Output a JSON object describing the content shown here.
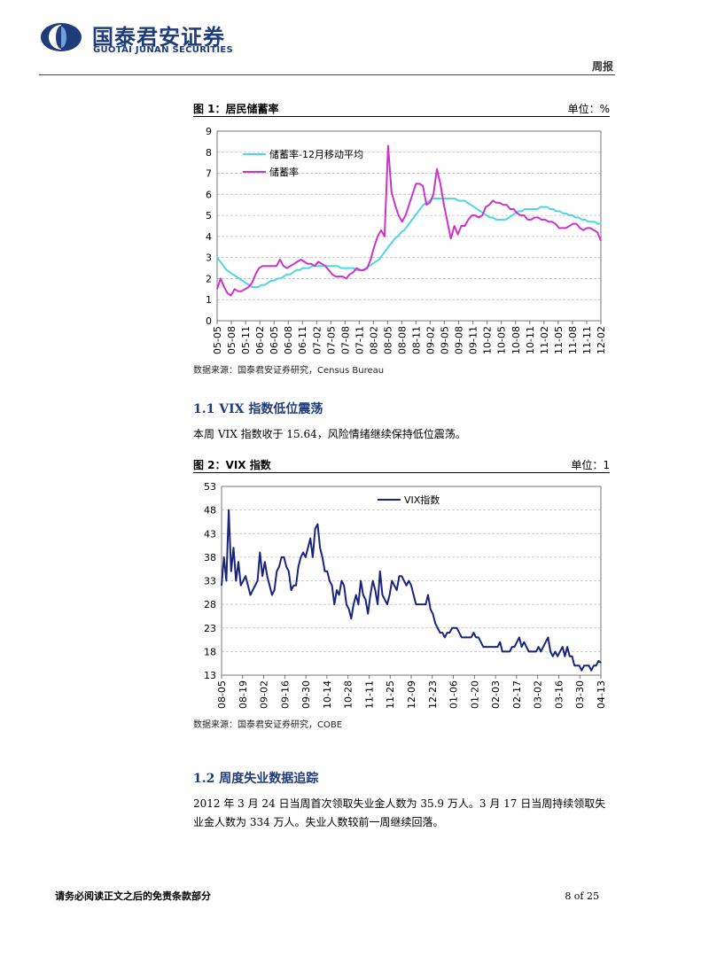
{
  "header": {
    "brand_cn": "国泰君安证券",
    "brand_en": "GUOTAI JUNAN SECURITIES",
    "report_type": "周报",
    "brand_color": "#1f3b7a"
  },
  "figure1": {
    "title": "图 1：居民储蓄率",
    "unit": "单位：%",
    "source": "数据来源：国泰君安证券研究，Census Bureau",
    "chart_data": {
      "type": "line",
      "ylim": [
        0,
        9
      ],
      "yticks": [
        0,
        1,
        2,
        3,
        4,
        5,
        6,
        7,
        8,
        9
      ],
      "xticks": [
        "05-05",
        "05-08",
        "05-11",
        "06-02",
        "06-05",
        "06-08",
        "06-11",
        "07-02",
        "07-05",
        "07-08",
        "07-11",
        "08-02",
        "08-05",
        "08-08",
        "08-11",
        "09-02",
        "09-05",
        "09-08",
        "09-11",
        "10-02",
        "10-05",
        "10-08",
        "10-11",
        "11-02",
        "11-05",
        "11-08",
        "11-11",
        "12-02"
      ],
      "legend_position": "top-left",
      "grid": "horizontal",
      "series": [
        {
          "name": "储蓄率-12月移动平均",
          "color": "#4fd6e0",
          "values": [
            3.0,
            2.8,
            2.6,
            2.4,
            2.3,
            2.2,
            2.1,
            2.0,
            1.9,
            1.8,
            1.7,
            1.6,
            1.6,
            1.6,
            1.7,
            1.7,
            1.8,
            1.9,
            1.9,
            2.0,
            2.0,
            2.1,
            2.2,
            2.2,
            2.3,
            2.4,
            2.4,
            2.5,
            2.5,
            2.5,
            2.6,
            2.6,
            2.6,
            2.6,
            2.6,
            2.6,
            2.6,
            2.6,
            2.6,
            2.5,
            2.5,
            2.5,
            2.5,
            2.5,
            2.4,
            2.4,
            2.4,
            2.5,
            2.6,
            2.7,
            2.8,
            2.9,
            3.1,
            3.3,
            3.5,
            3.7,
            3.9,
            4.0,
            4.2,
            4.3,
            4.5,
            4.7,
            4.9,
            5.1,
            5.3,
            5.5,
            5.6,
            5.7,
            5.8,
            5.8,
            5.8,
            5.8,
            5.8,
            5.8,
            5.8,
            5.8,
            5.7,
            5.7,
            5.7,
            5.6,
            5.5,
            5.4,
            5.3,
            5.2,
            5.1,
            5.0,
            4.9,
            4.9,
            4.8,
            4.8,
            4.8,
            4.8,
            4.9,
            5.0,
            5.1,
            5.2,
            5.2,
            5.3,
            5.3,
            5.3,
            5.3,
            5.3,
            5.4,
            5.4,
            5.4,
            5.3,
            5.3,
            5.2,
            5.2,
            5.1,
            5.1,
            5.0,
            5.0,
            4.9,
            4.9,
            4.8,
            4.8,
            4.7,
            4.7,
            4.7,
            4.6,
            4.6
          ]
        },
        {
          "name": "储蓄率",
          "color": "#cc33cc",
          "values": [
            1.5,
            2.0,
            1.6,
            1.3,
            1.2,
            1.5,
            1.4,
            1.4,
            1.5,
            1.6,
            1.8,
            2.2,
            2.5,
            2.6,
            2.6,
            2.6,
            2.6,
            2.6,
            2.9,
            2.6,
            2.5,
            2.6,
            2.7,
            2.8,
            2.9,
            2.8,
            2.7,
            2.7,
            2.6,
            2.8,
            2.7,
            2.6,
            2.4,
            2.2,
            2.1,
            2.1,
            2.1,
            2.0,
            2.2,
            2.3,
            2.5,
            2.4,
            2.4,
            2.5,
            2.9,
            3.5,
            4.0,
            4.3,
            4.0,
            8.3,
            6.1,
            5.5,
            5.0,
            4.7,
            5.0,
            5.5,
            6.0,
            6.5,
            6.5,
            6.4,
            5.5,
            5.6,
            6.0,
            7.2,
            6.5,
            5.5,
            4.7,
            3.9,
            4.5,
            4.1,
            4.5,
            4.5,
            4.8,
            5.0,
            5.0,
            4.9,
            5.0,
            5.4,
            5.5,
            5.7,
            5.6,
            5.6,
            5.5,
            5.5,
            5.3,
            5.3,
            5.1,
            5.0,
            5.0,
            4.8,
            4.8,
            4.9,
            4.9,
            4.8,
            4.8,
            4.7,
            4.7,
            4.6,
            4.4,
            4.4,
            4.4,
            4.5,
            4.6,
            4.6,
            4.4,
            4.3,
            4.4,
            4.4,
            4.3,
            4.2,
            3.8
          ]
        }
      ]
    }
  },
  "section1": {
    "title": "1.1  VIX 指数低位震荡",
    "text": "本周 VIX 指数收于 15.64，风险情绪继续保持低位震荡。"
  },
  "figure2": {
    "title": "图 2：VIX 指数",
    "unit": "单位：1",
    "source": "数据来源：国泰君安证券研究，COBE",
    "chart_data": {
      "type": "line",
      "ylim": [
        13,
        53
      ],
      "yticks": [
        13,
        18,
        23,
        28,
        33,
        38,
        43,
        48,
        53
      ],
      "xticks": [
        "08-05",
        "08-19",
        "09-02",
        "09-16",
        "09-30",
        "10-14",
        "10-28",
        "11-11",
        "11-25",
        "12-09",
        "12-23",
        "01-06",
        "01-20",
        "02-03",
        "02-17",
        "03-02",
        "03-16",
        "03-30",
        "04-13"
      ],
      "legend_position": "top-center",
      "grid": "horizontal",
      "series": [
        {
          "name": "VIX指数",
          "color": "#1a237e",
          "values": [
            32,
            38,
            33,
            48,
            35,
            40,
            33,
            37,
            32,
            33,
            34,
            32,
            30,
            31,
            32,
            33,
            39,
            34,
            37,
            34,
            32,
            30,
            31,
            35,
            36,
            38,
            38,
            36,
            35,
            31,
            32,
            32,
            36,
            38,
            39,
            38,
            40,
            42,
            38,
            44,
            45,
            40,
            38,
            35,
            35,
            33,
            32,
            28,
            31,
            30,
            33,
            32,
            28,
            27,
            25,
            28,
            30,
            28,
            33,
            30,
            29,
            26,
            30,
            33,
            31,
            28,
            35,
            30,
            29,
            28,
            30,
            33,
            32,
            31,
            34,
            34,
            33,
            32,
            33,
            32,
            30,
            28,
            28,
            28,
            28,
            28,
            30,
            27,
            26,
            24,
            23,
            22,
            22,
            21,
            22,
            22,
            23,
            23,
            23,
            22,
            21,
            21,
            21,
            21,
            21,
            22,
            21,
            21,
            20,
            19,
            19,
            19,
            19,
            19,
            19,
            19,
            20,
            18,
            18,
            18,
            18,
            19,
            19,
            20,
            21,
            19,
            20,
            19,
            18,
            18,
            18,
            18,
            19,
            18,
            19,
            20,
            21,
            18,
            17,
            18,
            17,
            18,
            19,
            17,
            19,
            17,
            17,
            15,
            15,
            15,
            14,
            15,
            15,
            15,
            14,
            15,
            15,
            16,
            15.64
          ]
        }
      ]
    }
  },
  "section2": {
    "title": "1.2  周度失业数据追踪",
    "text": "2012 年 3 月 24 日当周首次领取失业金人数为 35.9 万人。3 月 17 日当周持续领取失业金人数为 334 万人。失业人数较前一周继续回落。"
  },
  "footer": {
    "note": "请务必阅读正文之后的免责条款部分",
    "page": "8 of 25"
  }
}
